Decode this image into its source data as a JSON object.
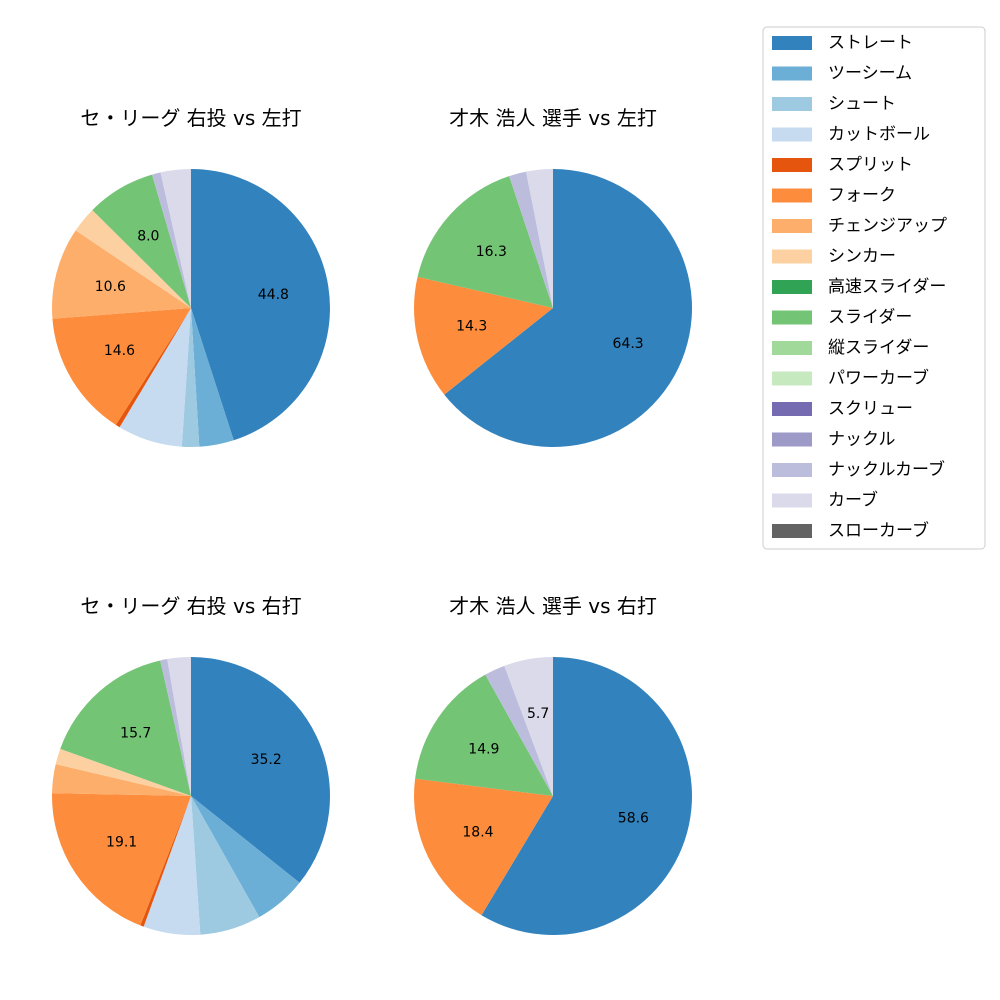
{
  "chart_data": {
    "type": "pie",
    "legend": {
      "placement": "top-right",
      "entries": [
        {
          "name": "ストレート",
          "color": "#3182bd"
        },
        {
          "name": "ツーシーム",
          "color": "#6baed6"
        },
        {
          "name": "シュート",
          "color": "#9ecae1"
        },
        {
          "name": "カットボール",
          "color": "#c6dbef"
        },
        {
          "name": "スプリット",
          "color": "#e6550d"
        },
        {
          "name": "フォーク",
          "color": "#fd8d3c"
        },
        {
          "name": "チェンジアップ",
          "color": "#fdae6b"
        },
        {
          "name": "シンカー",
          "color": "#fdd0a2"
        },
        {
          "name": "高速スライダー",
          "color": "#31a354"
        },
        {
          "name": "スライダー",
          "color": "#74c476"
        },
        {
          "name": "縦スライダー",
          "color": "#a1d99b"
        },
        {
          "name": "パワーカーブ",
          "color": "#c7e9c0"
        },
        {
          "name": "スクリュー",
          "color": "#756bb1"
        },
        {
          "name": "ナックル",
          "color": "#9e9ac8"
        },
        {
          "name": "ナックルカーブ",
          "color": "#bcbddc"
        },
        {
          "name": "カーブ",
          "color": "#dadaeb"
        },
        {
          "name": "スローカーブ",
          "color": "#636363"
        }
      ]
    },
    "charts": [
      {
        "title": "セ・リーグ 右投 vs 左打",
        "slices": [
          {
            "category": "ストレート",
            "value": 44.8,
            "label": "44.8"
          },
          {
            "category": "ツーシーム",
            "value": 4.0,
            "label": ""
          },
          {
            "category": "シュート",
            "value": 2.0,
            "label": ""
          },
          {
            "category": "カットボール",
            "value": 7.5,
            "label": ""
          },
          {
            "category": "スプリット",
            "value": 0.5,
            "label": ""
          },
          {
            "category": "フォーク",
            "value": 14.6,
            "label": "14.6"
          },
          {
            "category": "チェンジアップ",
            "value": 10.6,
            "label": "10.6"
          },
          {
            "category": "シンカー",
            "value": 3.0,
            "label": ""
          },
          {
            "category": "スライダー",
            "value": 8.0,
            "label": "8.0"
          },
          {
            "category": "ナックルカーブ",
            "value": 1.0,
            "label": ""
          },
          {
            "category": "カーブ",
            "value": 3.5,
            "label": ""
          }
        ]
      },
      {
        "title": "才木 浩人 選手 vs 左打",
        "slices": [
          {
            "category": "ストレート",
            "value": 64.3,
            "label": "64.3"
          },
          {
            "category": "フォーク",
            "value": 14.3,
            "label": "14.3"
          },
          {
            "category": "スライダー",
            "value": 16.3,
            "label": "16.3"
          },
          {
            "category": "ナックルカーブ",
            "value": 2.0,
            "label": ""
          },
          {
            "category": "カーブ",
            "value": 3.1,
            "label": ""
          }
        ]
      },
      {
        "title": "セ・リーグ 右投 vs 右打",
        "slices": [
          {
            "category": "ストレート",
            "value": 35.2,
            "label": "35.2"
          },
          {
            "category": "ツーシーム",
            "value": 6.0,
            "label": ""
          },
          {
            "category": "シュート",
            "value": 7.0,
            "label": ""
          },
          {
            "category": "カットボール",
            "value": 6.5,
            "label": ""
          },
          {
            "category": "スプリット",
            "value": 0.4,
            "label": ""
          },
          {
            "category": "フォーク",
            "value": 19.1,
            "label": "19.1"
          },
          {
            "category": "チェンジアップ",
            "value": 3.3,
            "label": ""
          },
          {
            "category": "シンカー",
            "value": 1.8,
            "label": ""
          },
          {
            "category": "スライダー",
            "value": 15.7,
            "label": "15.7"
          },
          {
            "category": "ナックルカーブ",
            "value": 0.8,
            "label": ""
          },
          {
            "category": "カーブ",
            "value": 2.7,
            "label": ""
          }
        ]
      },
      {
        "title": "才木 浩人 選手 vs 右打",
        "slices": [
          {
            "category": "ストレート",
            "value": 58.6,
            "label": "58.6"
          },
          {
            "category": "フォーク",
            "value": 18.4,
            "label": "18.4"
          },
          {
            "category": "スライダー",
            "value": 14.9,
            "label": "14.9"
          },
          {
            "category": "ナックルカーブ",
            "value": 2.4,
            "label": ""
          },
          {
            "category": "カーブ",
            "value": 5.7,
            "label": "5.7"
          }
        ]
      }
    ]
  }
}
